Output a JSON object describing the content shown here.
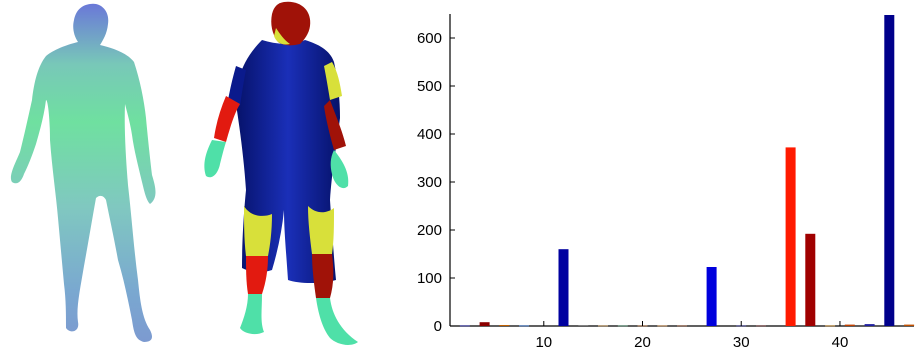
{
  "figure": {
    "left_model": "human-body-mesh-smooth-colormap",
    "middle_model": "human-body-mesh-segmented-colormap"
  },
  "colors": {
    "smooth_green": "#6fe0a0",
    "smooth_blue": "#6a78d8",
    "seg_navy": "#0a1a8c",
    "seg_red": "#e21a10",
    "seg_darkred": "#a01208",
    "seg_yellow": "#d8e03a",
    "seg_teal": "#4fe0a8"
  },
  "chart_data": {
    "type": "bar",
    "title": "",
    "xlabel": "",
    "ylabel": "",
    "xlim": [
      0.5,
      47.5
    ],
    "ylim": [
      0,
      650
    ],
    "x_ticks": [
      10,
      20,
      30,
      40
    ],
    "y_ticks": [
      0,
      100,
      200,
      300,
      400,
      500,
      600
    ],
    "grid": false,
    "bars": [
      {
        "x": 2,
        "value": 1,
        "color": "#1a1aa0"
      },
      {
        "x": 4,
        "value": 8,
        "color": "#8b0000"
      },
      {
        "x": 6,
        "value": 2,
        "color": "#c06000"
      },
      {
        "x": 8,
        "value": 1,
        "color": "#2060c0"
      },
      {
        "x": 12,
        "value": 160,
        "color": "#0000a0"
      },
      {
        "x": 14,
        "value": 2,
        "color": "#808080"
      },
      {
        "x": 16,
        "value": 1,
        "color": "#b08040"
      },
      {
        "x": 18,
        "value": 1,
        "color": "#408060"
      },
      {
        "x": 20,
        "value": 1,
        "color": "#a06030"
      },
      {
        "x": 22,
        "value": 1,
        "color": "#c08040"
      },
      {
        "x": 24,
        "value": 1,
        "color": "#804020"
      },
      {
        "x": 27,
        "value": 123,
        "color": "#0000dd"
      },
      {
        "x": 30,
        "value": 1,
        "color": "#202080"
      },
      {
        "x": 32,
        "value": 1,
        "color": "#602020"
      },
      {
        "x": 35,
        "value": 372,
        "color": "#ff1a00"
      },
      {
        "x": 37,
        "value": 192,
        "color": "#a00000"
      },
      {
        "x": 39,
        "value": 1,
        "color": "#c08020"
      },
      {
        "x": 41,
        "value": 3,
        "color": "#c04000"
      },
      {
        "x": 43,
        "value": 4,
        "color": "#2020a0"
      },
      {
        "x": 45,
        "value": 648,
        "color": "#00008b"
      },
      {
        "x": 47,
        "value": 3,
        "color": "#c05000"
      }
    ]
  }
}
